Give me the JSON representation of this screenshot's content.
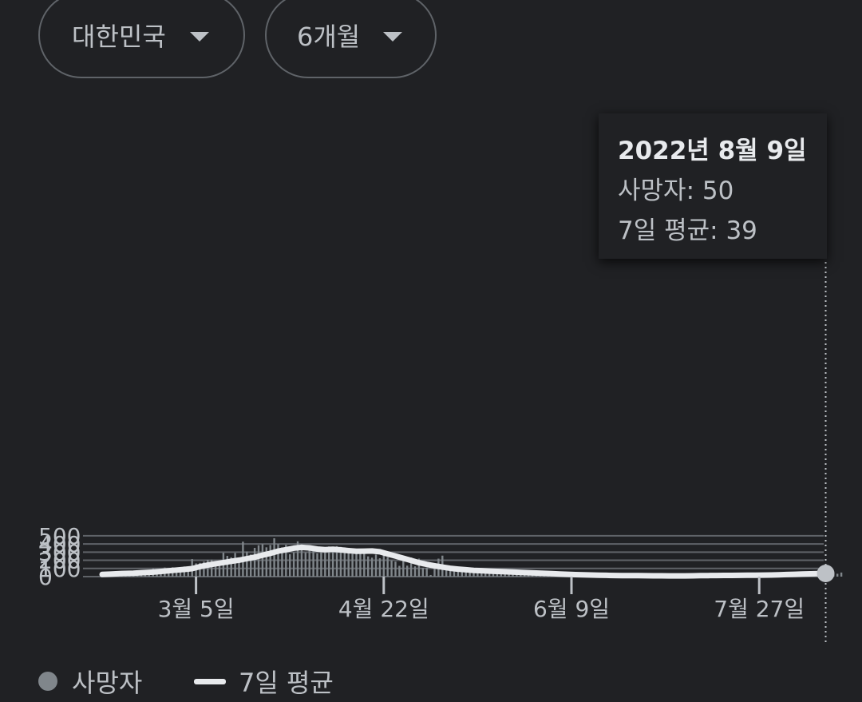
{
  "filters": {
    "region": "대한민국",
    "range": "6개월"
  },
  "tooltip": {
    "date": "2022년 8월 9일",
    "deaths_label": "사망자",
    "deaths_value": 50,
    "avg_label": "7일 평균",
    "avg_value": 39
  },
  "legend": {
    "deaths": "사망자",
    "avg": "7일 평균"
  },
  "colors": {
    "background": "#202124",
    "bar": "#80868b",
    "line": "#e8eaed",
    "grid": "#5f6368",
    "text": "#bdc1c6"
  },
  "chart_data": {
    "type": "bar",
    "ylim": [
      0,
      500
    ],
    "yticks": [
      0,
      100,
      200,
      300,
      400,
      500
    ],
    "xtick_labels": [
      {
        "label": "3월 5일",
        "day": 24
      },
      {
        "label": "4월 22일",
        "day": 72
      },
      {
        "label": "6월 9일",
        "day": 120
      },
      {
        "label": "7월 27일",
        "day": 168
      }
    ],
    "series": [
      {
        "name": "사망자",
        "style": "bar",
        "values": [
          48,
          28,
          36,
          22,
          60,
          34,
          44,
          41,
          70,
          50,
          56,
          62,
          65,
          100,
          84,
          95,
          111,
          87,
          114,
          107,
          113,
          124,
          111,
          215,
          162,
          168,
          183,
          205,
          207,
          170,
          194,
          293,
          254,
          236,
          290,
          208,
          428,
          307,
          271,
          352,
          384,
          399,
          359,
          387,
          470,
          401,
          358,
          389,
          274,
          298,
          432,
          396,
          298,
          377,
          315,
          285,
          350,
          330,
          370,
          316,
          373,
          364,
          358,
          321,
          278,
          327,
          302,
          305,
          248,
          232,
          270,
          225,
          266,
          238,
          199,
          184,
          132,
          221,
          134,
          235,
          126,
          220,
          108,
          110,
          20,
          142,
          220,
          257,
          85,
          95,
          102,
          90,
          67,
          76,
          73,
          49,
          74,
          61,
          55,
          56,
          37,
          40,
          54,
          46,
          44,
          62,
          33,
          41,
          54,
          36,
          44,
          38,
          40,
          33,
          32,
          24,
          26,
          20,
          27,
          25,
          14,
          12,
          13,
          14,
          10,
          14,
          12,
          12,
          12,
          16,
          11,
          13,
          12,
          15,
          10,
          11,
          10,
          11,
          9,
          8,
          10,
          9,
          8,
          14,
          11,
          15,
          9,
          12,
          8,
          9,
          8,
          7,
          8,
          6,
          7,
          10,
          9,
          12,
          16,
          22,
          21,
          19,
          18,
          16,
          14,
          13,
          16,
          13,
          24,
          18,
          20,
          31,
          30,
          25,
          23,
          28,
          27,
          34,
          32,
          28,
          26,
          32,
          28,
          34,
          30,
          31,
          47,
          44,
          35,
          50
        ],
        "estimated": true
      },
      {
        "name": "7일 평균",
        "style": "line",
        "points": [
          [
            0,
            26
          ],
          [
            2,
            30
          ],
          [
            5,
            38
          ],
          [
            8,
            42
          ],
          [
            10,
            48
          ],
          [
            13,
            55
          ],
          [
            16,
            68
          ],
          [
            19,
            80
          ],
          [
            21,
            88
          ],
          [
            23,
            98
          ],
          [
            25,
            122
          ],
          [
            27,
            142
          ],
          [
            29,
            158
          ],
          [
            31,
            172
          ],
          [
            33,
            188
          ],
          [
            35,
            202
          ],
          [
            37,
            220
          ],
          [
            39,
            238
          ],
          [
            41,
            262
          ],
          [
            43,
            285
          ],
          [
            45,
            312
          ],
          [
            47,
            330
          ],
          [
            49,
            348
          ],
          [
            51,
            358
          ],
          [
            53,
            352
          ],
          [
            55,
            338
          ],
          [
            57,
            330
          ],
          [
            59,
            336
          ],
          [
            61,
            328
          ],
          [
            63,
            318
          ],
          [
            65,
            310
          ],
          [
            67,
            312
          ],
          [
            69,
            314
          ],
          [
            71,
            304
          ],
          [
            73,
            278
          ],
          [
            75,
            252
          ],
          [
            77,
            225
          ],
          [
            79,
            198
          ],
          [
            81,
            170
          ],
          [
            83,
            150
          ],
          [
            85,
            132
          ],
          [
            87,
            116
          ],
          [
            89,
            102
          ],
          [
            91,
            92
          ],
          [
            93,
            84
          ],
          [
            95,
            76
          ],
          [
            97,
            72
          ],
          [
            99,
            68
          ],
          [
            101,
            64
          ],
          [
            103,
            60
          ],
          [
            105,
            56
          ],
          [
            107,
            52
          ],
          [
            109,
            48
          ],
          [
            111,
            44
          ],
          [
            113,
            40
          ],
          [
            115,
            36
          ],
          [
            117,
            32
          ],
          [
            119,
            28
          ],
          [
            121,
            24
          ],
          [
            123,
            22
          ],
          [
            125,
            20
          ],
          [
            127,
            18
          ],
          [
            129,
            16
          ],
          [
            131,
            14
          ],
          [
            133,
            13
          ],
          [
            135,
            12
          ],
          [
            137,
            12
          ],
          [
            139,
            11
          ],
          [
            141,
            10
          ],
          [
            143,
            10
          ],
          [
            145,
            9
          ],
          [
            147,
            9
          ],
          [
            149,
            9
          ],
          [
            151,
            10
          ],
          [
            153,
            12
          ],
          [
            155,
            13
          ],
          [
            157,
            14
          ],
          [
            159,
            15
          ],
          [
            161,
            15
          ],
          [
            163,
            16
          ],
          [
            165,
            17
          ],
          [
            167,
            18
          ],
          [
            169,
            19
          ],
          [
            171,
            20
          ],
          [
            173,
            22
          ],
          [
            175,
            25
          ],
          [
            177,
            28
          ],
          [
            179,
            31
          ],
          [
            181,
            34
          ],
          [
            183,
            36
          ],
          [
            185,
            39
          ]
        ],
        "estimated": true
      }
    ]
  }
}
